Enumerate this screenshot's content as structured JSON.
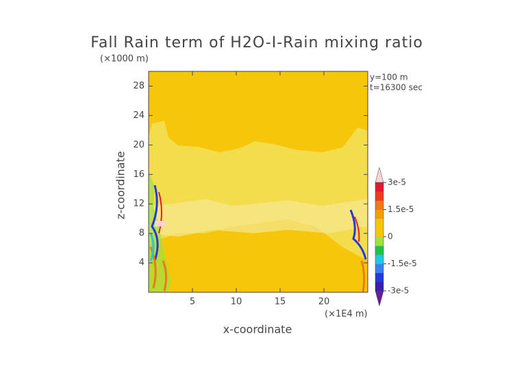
{
  "chart_data": {
    "type": "field",
    "title": "Fall Rain term of H2O-I-Rain mixing ratio",
    "y_unit": "(×1000 m)",
    "x_unit": "(×1E4 m)",
    "annotations": [
      "y=100 m",
      "t=16300 sec"
    ],
    "xlabel": "x-coordinate",
    "ylabel": "z-coordinate",
    "xlim": [
      0,
      25
    ],
    "xticks": [
      5,
      10,
      15,
      20
    ],
    "ylim": [
      0,
      30
    ],
    "yticks": [
      4,
      8,
      12,
      16,
      20,
      24,
      28
    ],
    "background": "#f6c60a",
    "colorbar": {
      "lim": [
        -3e-05,
        3e-05
      ],
      "ticks": [
        {
          "value": 3e-05,
          "label": "3e-5"
        },
        {
          "value": 1.5e-05,
          "label": "1.5e-5"
        },
        {
          "value": 0,
          "label": "0"
        },
        {
          "value": -1.5e-05,
          "label": "-1.5e-5"
        },
        {
          "value": -3e-05,
          "label": "-3e-5"
        }
      ],
      "colors": [
        "#6a1a9a",
        "#3a1eb0",
        "#2438e0",
        "#3a80f0",
        "#20c8e0",
        "#20c050",
        "#a0e040",
        "#f6c60a",
        "#f6c60a",
        "#f0a000",
        "#f07818",
        "#f03a20",
        "#e81830",
        "#f8d4d4"
      ]
    }
  }
}
